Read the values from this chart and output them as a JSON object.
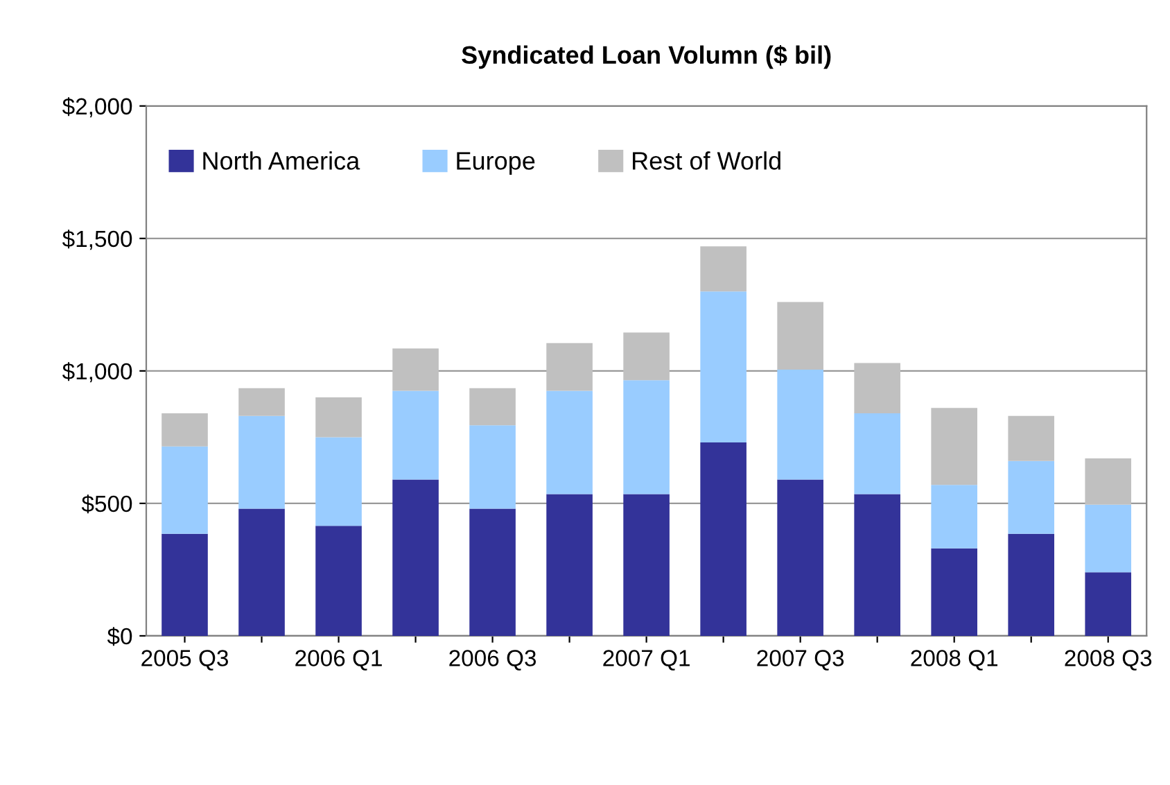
{
  "chart_data": {
    "type": "bar",
    "title": "Syndicated Loan Volumn ($ bil)",
    "categories": [
      "2005 Q3",
      null,
      "2006 Q1",
      null,
      "2006 Q3",
      null,
      "2007 Q1",
      null,
      "2007 Q3",
      null,
      "2008 Q1",
      null,
      "2008 Q3"
    ],
    "stacked": true,
    "series": [
      {
        "name": "North America",
        "color": "#333399",
        "values": [
          385,
          480,
          415,
          590,
          480,
          535,
          535,
          730,
          590,
          535,
          330,
          385,
          240
        ]
      },
      {
        "name": "Europe",
        "color": "#99ccff",
        "values": [
          330,
          350,
          335,
          335,
          315,
          390,
          430,
          570,
          415,
          305,
          240,
          275,
          255
        ]
      },
      {
        "name": "Rest of World",
        "color": "#c0c0c0",
        "values": [
          125,
          105,
          150,
          160,
          140,
          180,
          180,
          170,
          255,
          190,
          290,
          170,
          175
        ]
      }
    ],
    "ylim": [
      0,
      2000
    ],
    "yticks": [
      {
        "value": 0,
        "label": "$0"
      },
      {
        "value": 500,
        "label": "$500"
      },
      {
        "value": 1000,
        "label": "$1,000"
      },
      {
        "value": 1500,
        "label": "$1,500"
      },
      {
        "value": 2000,
        "label": "$2,000"
      }
    ],
    "grid": "y",
    "legend": "top left"
  }
}
